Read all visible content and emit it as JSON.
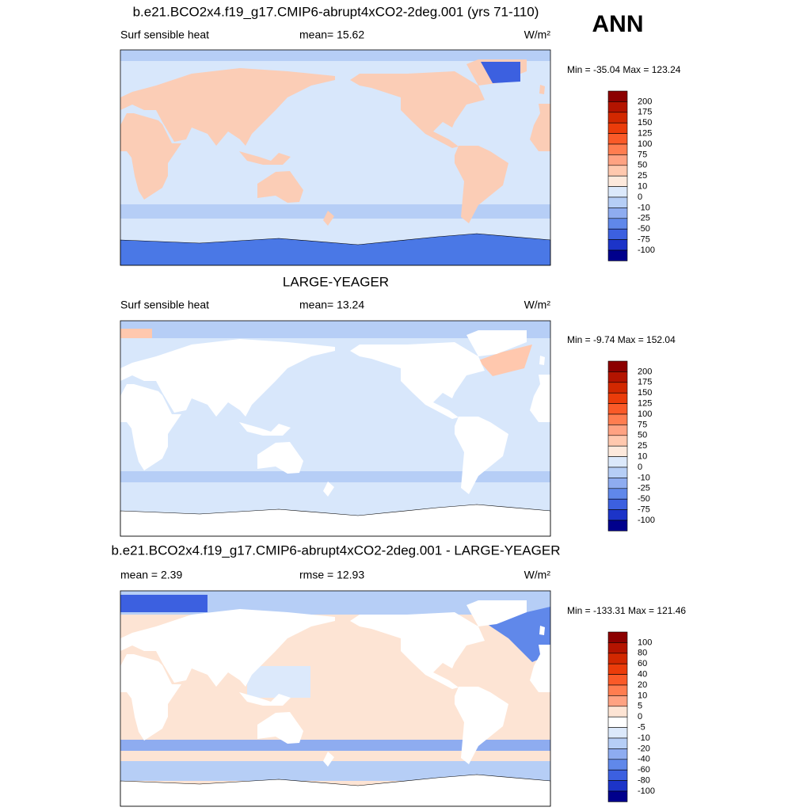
{
  "header": {
    "season": "ANN"
  },
  "panels": [
    {
      "title": "b.e21.BCO2x4.f19_g17.CMIP6-abrupt4xCO2-2deg.001 (yrs 71-110)",
      "left": "Surf sensible heat",
      "middle": "mean=  15.62",
      "units": "W/m²",
      "minmax": "Min = -35.04 Max = 123.24",
      "colorbar": {
        "labels": [
          "200",
          "175",
          "150",
          "125",
          "100",
          "75",
          "50",
          "25",
          "10",
          "0",
          "-10",
          "-25",
          "-50",
          "-75",
          "-100"
        ],
        "colors": [
          "#8c0000",
          "#b41400",
          "#d22800",
          "#eb3c0a",
          "#fa5a28",
          "#ff7d50",
          "#ffa282",
          "#ffc8ae",
          "#fde9dc",
          "#dce9fb",
          "#b6cef6",
          "#8eacf0",
          "#6088ea",
          "#3c60e0",
          "#1c34c8",
          "#00008c"
        ]
      }
    },
    {
      "title": "LARGE-YEAGER",
      "left": "Surf sensible heat",
      "middle": "mean=  13.24",
      "units": "W/m²",
      "minmax": "Min =  -9.74 Max = 152.04",
      "colorbar": {
        "labels": [
          "200",
          "175",
          "150",
          "125",
          "100",
          "75",
          "50",
          "25",
          "10",
          "0",
          "-10",
          "-25",
          "-50",
          "-75",
          "-100"
        ],
        "colors": [
          "#8c0000",
          "#b41400",
          "#d22800",
          "#eb3c0a",
          "#fa5a28",
          "#ff7d50",
          "#ffa282",
          "#ffc8ae",
          "#fde9dc",
          "#dce9fb",
          "#b6cef6",
          "#8eacf0",
          "#6088ea",
          "#3c60e0",
          "#1c34c8",
          "#00008c"
        ]
      }
    },
    {
      "title": "b.e21.BCO2x4.f19_g17.CMIP6-abrupt4xCO2-2deg.001 - LARGE-YEAGER",
      "left": "mean =   2.39",
      "middle": "rmse =  12.93",
      "units": "W/m²",
      "minmax": "Min = -133.31 Max = 121.46",
      "colorbar": {
        "labels": [
          "100",
          "80",
          "60",
          "40",
          "20",
          "10",
          "5",
          "0",
          "-5",
          "-10",
          "-20",
          "-40",
          "-60",
          "-80",
          "-100"
        ],
        "colors": [
          "#8c0000",
          "#b41400",
          "#d22800",
          "#eb3c0a",
          "#fa5a28",
          "#ff7d50",
          "#ffa282",
          "#fde4d4",
          "#ffffff",
          "#dce9fb",
          "#b6cef6",
          "#8eacf0",
          "#6088ea",
          "#3c60e0",
          "#1c34c8",
          "#00008c"
        ]
      }
    }
  ]
}
